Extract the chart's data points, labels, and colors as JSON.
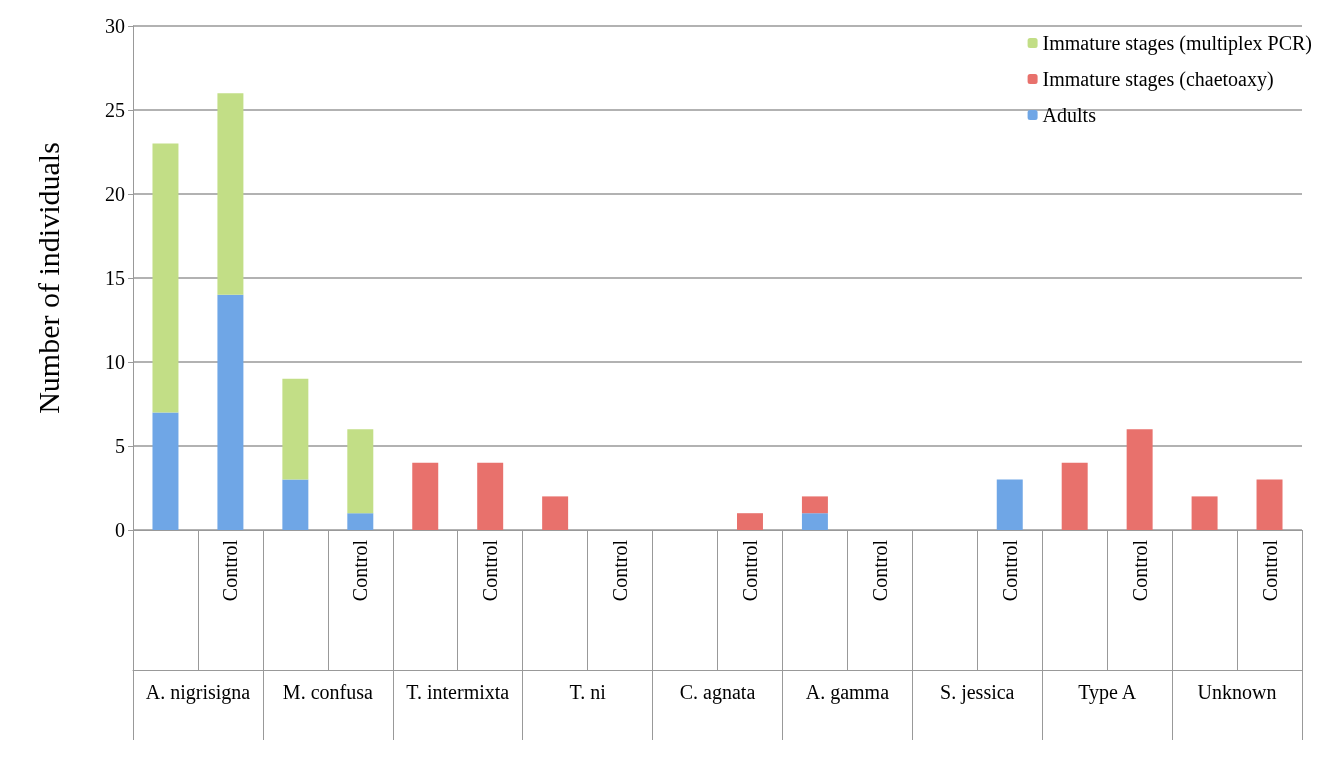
{
  "chart_data": {
    "type": "bar",
    "stacked": true,
    "ylabel": "Number of individuals",
    "categories": [
      null,
      "Control",
      null,
      "Control",
      null,
      "Control",
      null,
      "Control",
      null,
      "Control",
      null,
      "Control",
      null,
      "Control",
      null,
      "Control",
      null,
      "Control"
    ],
    "annotations": [
      "A. nigrisigna",
      "M. confusa",
      "T. intermixta",
      "T. ni",
      "C. agnata",
      "A. gamma",
      "S. jessica",
      "Type A",
      "Unknown"
    ],
    "series": [
      {
        "name": "Adults",
        "color": "#6fa6e6",
        "values": [
          7,
          14,
          3,
          1,
          0,
          0,
          0,
          0,
          0,
          0,
          1,
          0,
          0,
          3,
          0,
          0,
          0,
          0
        ]
      },
      {
        "name": "Immature stages (chaetoaxy)",
        "color": "#e8716c",
        "values": [
          0,
          0,
          0,
          0,
          4,
          4,
          2,
          0,
          0,
          1,
          1,
          0,
          0,
          0,
          4,
          6,
          2,
          3
        ]
      },
      {
        "name": "Immature stages (multiplex PCR)",
        "color": "#c2de86",
        "values": [
          16,
          12,
          6,
          5,
          0,
          0,
          0,
          0,
          0,
          0,
          0,
          0,
          0,
          0,
          0,
          0,
          0,
          0
        ]
      }
    ],
    "ylim": [
      0,
      30
    ],
    "yticks": [
      0,
      5,
      10,
      15,
      20,
      25,
      30
    ],
    "grid": "y",
    "legend": "top right"
  }
}
